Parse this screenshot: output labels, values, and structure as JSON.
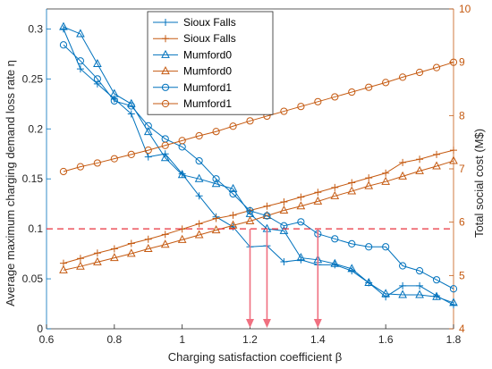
{
  "chart_data": {
    "type": "line",
    "xlabel": "Charging satisfaction coefficient β",
    "ylabel_left": "Average maximum charging demand loss rate η",
    "ylabel_right": "Total social cost (M$)",
    "xlim": [
      0.6,
      1.8
    ],
    "ylim_left": [
      0,
      0.32
    ],
    "ylim_right": [
      4,
      10
    ],
    "x_ticks": [
      "0.6",
      "0.8",
      "1",
      "1.2",
      "1.4",
      "1.6",
      "1.8"
    ],
    "y_left_ticks": [
      "0",
      "0.05",
      "0.1",
      "0.15",
      "0.2",
      "0.25",
      "0.3"
    ],
    "y_right_ticks": [
      "4",
      "5",
      "6",
      "7",
      "8",
      "9",
      "10"
    ],
    "grid": false,
    "legend_position": "top-center",
    "colors": {
      "left": "#0072bd",
      "right": "#c55a11",
      "threshold": "#e8323c",
      "arrow": "#f07080"
    },
    "x": [
      0.65,
      0.7,
      0.75,
      0.8,
      0.85,
      0.9,
      0.95,
      1.0,
      1.05,
      1.1,
      1.15,
      1.2,
      1.25,
      1.3,
      1.35,
      1.4,
      1.45,
      1.5,
      1.55,
      1.6,
      1.65,
      1.7,
      1.75,
      1.8
    ],
    "series": [
      {
        "name": "Sioux Falls",
        "axis": "left",
        "marker": "plus",
        "values": [
          0.3,
          0.26,
          0.245,
          0.23,
          0.215,
          0.172,
          0.175,
          0.155,
          0.133,
          0.112,
          0.102,
          0.082,
          0.083,
          0.067,
          0.069,
          0.064,
          0.064,
          0.058,
          0.046,
          0.032,
          0.043,
          0.043,
          0.033,
          0.024
        ]
      },
      {
        "name": "Sioux Falls",
        "axis": "right",
        "marker": "plus",
        "values": [
          5.23,
          5.32,
          5.42,
          5.5,
          5.6,
          5.68,
          5.77,
          5.87,
          5.97,
          6.07,
          6.13,
          6.22,
          6.3,
          6.38,
          6.47,
          6.56,
          6.65,
          6.74,
          6.83,
          6.92,
          7.12,
          7.18,
          7.27,
          7.35
        ]
      },
      {
        "name": "Mumford0",
        "axis": "left",
        "marker": "triangle",
        "values": [
          0.302,
          0.295,
          0.265,
          0.235,
          0.225,
          0.197,
          0.171,
          0.154,
          0.15,
          0.145,
          0.14,
          0.115,
          0.1,
          0.098,
          0.071,
          0.069,
          0.065,
          0.06,
          0.046,
          0.035,
          0.034,
          0.034,
          0.032,
          0.026
        ]
      },
      {
        "name": "Mumford0",
        "axis": "right",
        "marker": "triangle",
        "values": [
          5.1,
          5.17,
          5.25,
          5.33,
          5.41,
          5.5,
          5.58,
          5.67,
          5.76,
          5.85,
          5.94,
          6.02,
          6.12,
          6.22,
          6.3,
          6.39,
          6.49,
          6.58,
          6.68,
          6.76,
          6.86,
          6.96,
          7.05,
          7.15
        ]
      },
      {
        "name": "Mumford1",
        "axis": "left",
        "marker": "circle",
        "values": [
          0.284,
          0.268,
          0.25,
          0.228,
          0.223,
          0.203,
          0.19,
          0.182,
          0.168,
          0.15,
          0.135,
          0.118,
          0.113,
          0.103,
          0.107,
          0.095,
          0.09,
          0.085,
          0.082,
          0.082,
          0.063,
          0.058,
          0.049,
          0.04
        ]
      },
      {
        "name": "Mumford1",
        "axis": "right",
        "marker": "circle",
        "values": [
          6.95,
          7.04,
          7.11,
          7.19,
          7.27,
          7.35,
          7.44,
          7.53,
          7.62,
          7.7,
          7.8,
          7.9,
          7.99,
          8.08,
          8.17,
          8.26,
          8.35,
          8.44,
          8.53,
          8.62,
          8.72,
          8.81,
          8.9,
          9.0
        ]
      }
    ],
    "threshold": {
      "axis": "left",
      "value": 0.1
    },
    "arrows": [
      1.2,
      1.25,
      1.4
    ]
  }
}
